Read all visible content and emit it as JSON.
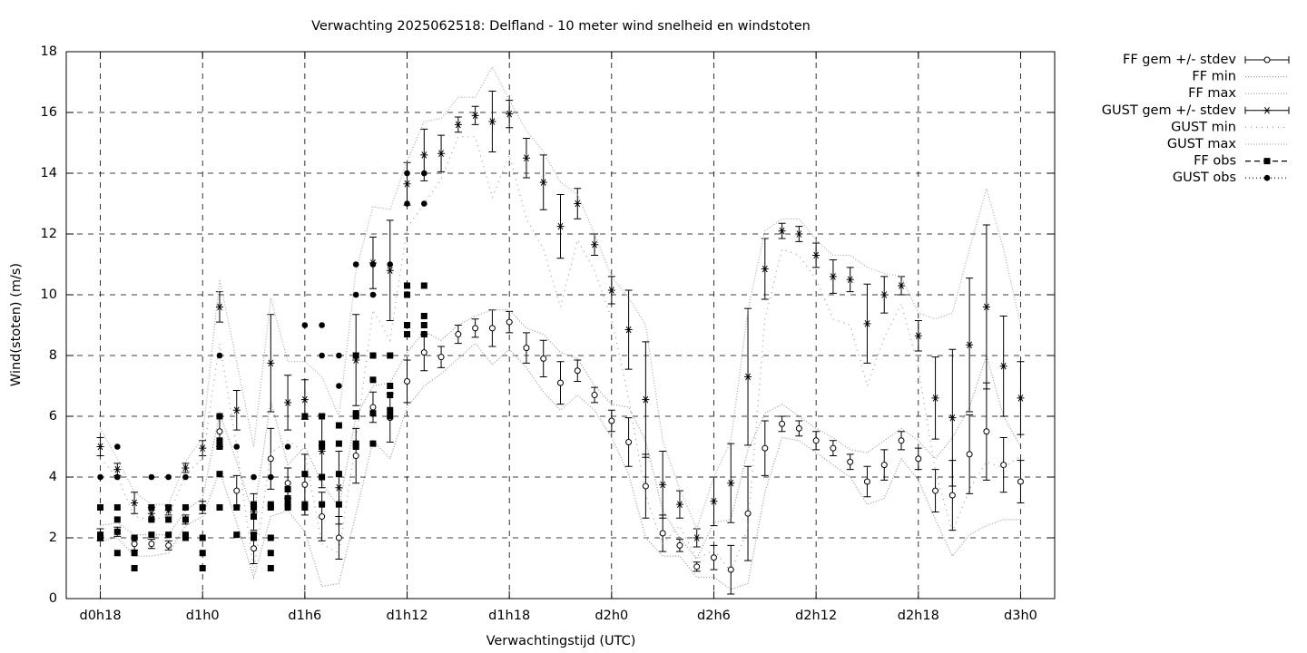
{
  "chart_data": {
    "type": "errorbar",
    "title": "Verwachting 2025062518: Delfland - 10 meter wind snelheid en windstoten",
    "xlabel": "Verwachtingstijd (UTC)",
    "ylabel": "Wind(stoten) (m/s)",
    "xlim": [
      16,
      74
    ],
    "ylim": [
      0,
      18
    ],
    "xticks": [
      {
        "value": 18,
        "label": "d0h18"
      },
      {
        "value": 24,
        "label": "d1h0"
      },
      {
        "value": 30,
        "label": "d1h6"
      },
      {
        "value": 36,
        "label": "d1h12"
      },
      {
        "value": 42,
        "label": "d1h18"
      },
      {
        "value": 48,
        "label": "d2h0"
      },
      {
        "value": 54,
        "label": "d2h6"
      },
      {
        "value": 60,
        "label": "d2h12"
      },
      {
        "value": 66,
        "label": "d2h18"
      },
      {
        "value": 72,
        "label": "d3h0"
      }
    ],
    "yticks": [
      0,
      2,
      4,
      6,
      8,
      10,
      12,
      14,
      16,
      18
    ],
    "grid": true,
    "legend": "outside-top-right",
    "x": [
      18,
      19,
      20,
      21,
      22,
      23,
      24,
      25,
      26,
      27,
      28,
      29,
      30,
      31,
      32,
      33,
      34,
      35,
      36,
      37,
      38,
      39,
      40,
      41,
      42,
      43,
      44,
      45,
      46,
      47,
      48,
      49,
      50,
      51,
      52,
      53,
      54,
      55,
      56,
      57,
      58,
      59,
      60,
      61,
      62,
      63,
      64,
      65,
      66,
      67,
      68,
      69,
      70,
      71,
      72
    ],
    "series": [
      {
        "name": "FF gem +/- stdev",
        "style": "errorbar-circle",
        "color": "#000000",
        "values": [
          2.1,
          2.2,
          1.8,
          1.8,
          1.75,
          2.6,
          3.0,
          5.5,
          3.55,
          1.65,
          4.6,
          3.8,
          3.75,
          2.7,
          2.0,
          4.7,
          6.3,
          5.95,
          7.15,
          8.1,
          7.95,
          8.7,
          8.9,
          8.9,
          9.1,
          8.25,
          7.9,
          7.1,
          7.5,
          6.7,
          5.85,
          5.15,
          3.7,
          2.15,
          1.75,
          1.05,
          1.35,
          0.95,
          2.8,
          4.95,
          5.75,
          5.6,
          5.2,
          4.95,
          4.5,
          3.85,
          4.4,
          5.2,
          4.6,
          3.55,
          3.4,
          4.75,
          5.5,
          4.4,
          3.85
        ],
        "errors": [
          0.2,
          0.15,
          0.2,
          0.15,
          0.15,
          0.15,
          0.2,
          0.5,
          0.5,
          0.5,
          1.0,
          0.5,
          1.0,
          0.8,
          0.7,
          0.9,
          0.5,
          0.8,
          0.7,
          0.6,
          0.35,
          0.3,
          0.3,
          0.6,
          0.35,
          0.5,
          0.6,
          0.7,
          0.35,
          0.25,
          0.35,
          0.8,
          1.05,
          0.6,
          0.2,
          0.15,
          0.4,
          0.8,
          1.55,
          0.9,
          0.25,
          0.25,
          0.3,
          0.25,
          0.25,
          0.5,
          0.5,
          0.3,
          0.35,
          0.7,
          1.15,
          1.3,
          1.6,
          0.9,
          0.7
        ]
      },
      {
        "name": "FF min",
        "style": "dotted-dense",
        "color": "#999999",
        "values": [
          1.9,
          2.0,
          1.4,
          1.4,
          1.5,
          2.4,
          2.7,
          4.2,
          2.5,
          0.7,
          2.7,
          2.9,
          2.2,
          0.4,
          0.5,
          2.8,
          5.2,
          4.6,
          6.3,
          7.0,
          7.4,
          7.9,
          8.4,
          7.7,
          8.2,
          7.6,
          6.8,
          6.2,
          6.7,
          6.2,
          5.3,
          4.1,
          2.0,
          1.4,
          1.4,
          0.7,
          0.7,
          0.3,
          0.5,
          3.5,
          5.3,
          5.2,
          4.8,
          4.4,
          4.0,
          3.1,
          3.3,
          4.6,
          3.9,
          2.6,
          1.4,
          2.1,
          2.4,
          2.6,
          2.6
        ]
      },
      {
        "name": "FF max",
        "style": "dotted-dense",
        "color": "#999999",
        "values": [
          2.4,
          2.5,
          2.1,
          2.1,
          2.1,
          2.9,
          3.3,
          6.1,
          4.5,
          2.7,
          6.5,
          4.4,
          5.0,
          3.8,
          3.0,
          6.0,
          7.0,
          7.1,
          8.1,
          8.8,
          8.5,
          9.0,
          9.3,
          9.5,
          9.5,
          8.9,
          8.7,
          8.1,
          7.9,
          7.0,
          6.4,
          6.3,
          5.2,
          2.9,
          2.0,
          1.3,
          2.5,
          2.6,
          4.9,
          6.1,
          6.4,
          6.0,
          5.6,
          5.3,
          4.9,
          4.8,
          5.2,
          5.6,
          5.2,
          4.6,
          5.3,
          6.3,
          8.0,
          6.0,
          5.0
        ]
      },
      {
        "name": "GUST gem +/- stdev",
        "style": "errorbar-star",
        "color": "#000000",
        "values": [
          5.0,
          4.25,
          3.15,
          2.8,
          2.9,
          4.3,
          4.95,
          9.6,
          6.2,
          2.85,
          7.75,
          6.45,
          6.55,
          4.85,
          3.65,
          7.85,
          11.05,
          10.8,
          13.65,
          14.6,
          14.65,
          15.6,
          15.9,
          15.7,
          15.95,
          14.5,
          13.7,
          12.25,
          13.0,
          11.65,
          10.15,
          8.85,
          6.55,
          3.75,
          3.1,
          2.0,
          3.2,
          3.8,
          7.3,
          10.85,
          12.1,
          12.0,
          11.3,
          10.6,
          10.5,
          9.05,
          10.0,
          10.3,
          8.65,
          6.6,
          5.95,
          8.35,
          9.6,
          7.65,
          6.6
        ],
        "errors": [
          0.3,
          0.2,
          0.35,
          0.2,
          0.15,
          0.15,
          0.25,
          0.5,
          0.65,
          0.6,
          1.6,
          0.9,
          0.65,
          1.2,
          1.2,
          1.5,
          0.85,
          1.65,
          0.7,
          0.85,
          0.6,
          0.25,
          0.3,
          1.0,
          0.45,
          0.65,
          0.9,
          1.05,
          0.5,
          0.35,
          0.45,
          1.3,
          1.9,
          1.1,
          0.45,
          0.3,
          0.8,
          1.3,
          2.25,
          1.0,
          0.25,
          0.25,
          0.4,
          0.55,
          0.4,
          1.3,
          0.6,
          0.3,
          0.5,
          1.35,
          2.25,
          2.2,
          2.7,
          1.65,
          1.2
        ]
      },
      {
        "name": "GUST min",
        "style": "dotted-sparse",
        "color": "#999999",
        "values": [
          4.6,
          4.0,
          2.7,
          2.6,
          2.7,
          4.1,
          4.6,
          8.4,
          5.0,
          0.9,
          4.8,
          5.2,
          4.8,
          1.8,
          1.5,
          5.2,
          9.5,
          8.5,
          12.2,
          13.0,
          13.8,
          15.2,
          15.2,
          13.2,
          14.6,
          12.5,
          11.5,
          9.6,
          11.8,
          10.8,
          9.2,
          6.6,
          3.4,
          1.8,
          2.4,
          1.3,
          1.6,
          0.9,
          2.3,
          9.2,
          11.5,
          11.3,
          10.5,
          9.2,
          9.0,
          7.0,
          8.6,
          9.7,
          7.6,
          4.2,
          2.2,
          3.6,
          4.5,
          4.3,
          4.7
        ]
      },
      {
        "name": "GUST max",
        "style": "dotted-dense",
        "color": "#aaaaaa",
        "values": [
          5.6,
          4.6,
          3.5,
          3.1,
          3.1,
          4.5,
          5.3,
          10.5,
          7.8,
          5.0,
          9.9,
          7.8,
          7.8,
          7.3,
          6.0,
          10.8,
          12.9,
          12.8,
          14.4,
          15.7,
          15.8,
          16.5,
          16.5,
          17.5,
          16.4,
          15.4,
          14.7,
          13.7,
          13.3,
          12.0,
          10.6,
          9.9,
          9.0,
          5.2,
          3.6,
          2.3,
          4.0,
          5.2,
          9.5,
          12.1,
          12.5,
          12.5,
          11.8,
          11.3,
          11.3,
          10.9,
          10.7,
          10.6,
          9.4,
          9.2,
          9.4,
          11.5,
          13.5,
          11.5,
          9.0
        ]
      },
      {
        "name": "FF obs",
        "style": "points-square",
        "color": "#000000",
        "x": [
          18,
          18,
          18,
          19,
          19,
          19,
          19,
          20,
          20,
          20,
          21,
          21,
          21,
          22,
          22,
          22,
          23,
          23,
          23,
          23,
          24,
          24,
          24,
          24,
          25,
          25,
          25,
          25,
          25,
          26,
          26,
          27,
          27,
          27,
          27,
          27,
          28,
          28,
          28,
          28,
          28,
          29,
          29,
          29,
          29,
          30,
          30,
          30,
          30,
          31,
          31,
          31,
          31,
          31,
          32,
          32,
          32,
          32,
          33,
          33,
          33,
          33,
          33,
          34,
          34,
          34,
          34,
          35,
          35,
          35,
          35,
          35,
          36,
          36,
          36,
          36,
          37,
          37,
          37,
          37
        ],
        "values": [
          3.0,
          2.1,
          2.0,
          3.0,
          2.6,
          2.2,
          1.5,
          2.0,
          1.5,
          1.0,
          3.0,
          2.6,
          2.1,
          3.0,
          2.6,
          2.1,
          3.0,
          2.6,
          2.1,
          2.0,
          3.0,
          2.0,
          1.5,
          1.0,
          6.0,
          5.2,
          5.0,
          4.1,
          3.0,
          3.0,
          2.1,
          3.1,
          3.0,
          2.7,
          2.1,
          2.0,
          3.1,
          3.0,
          2.0,
          1.5,
          1.0,
          3.6,
          3.3,
          3.1,
          3.0,
          6.0,
          4.1,
          3.1,
          3.0,
          6.0,
          5.1,
          5.0,
          4.0,
          3.1,
          5.7,
          5.1,
          4.1,
          3.1,
          8.0,
          6.1,
          6.0,
          5.1,
          5.0,
          8.0,
          7.2,
          6.1,
          5.1,
          8.0,
          7.0,
          6.7,
          6.2,
          6.0,
          10.3,
          10.0,
          9.0,
          8.7,
          10.3,
          9.3,
          9.0,
          8.7
        ]
      },
      {
        "name": "GUST obs",
        "style": "points-circle",
        "color": "#000000",
        "x": [
          18,
          19,
          19,
          21,
          22,
          23,
          24,
          25,
          25,
          26,
          27,
          28,
          28,
          29,
          30,
          31,
          31,
          32,
          32,
          33,
          33,
          34,
          34,
          35,
          36,
          36,
          37,
          37
        ],
        "values": [
          4.0,
          5.0,
          4.0,
          4.0,
          4.0,
          4.0,
          3.0,
          8.0,
          5.0,
          5.0,
          4.0,
          4.0,
          2.0,
          5.0,
          9.0,
          9.0,
          8.0,
          8.0,
          7.0,
          11.0,
          10.0,
          11.0,
          10.0,
          11.0,
          14.0,
          13.0,
          14.0,
          13.0
        ]
      }
    ]
  }
}
